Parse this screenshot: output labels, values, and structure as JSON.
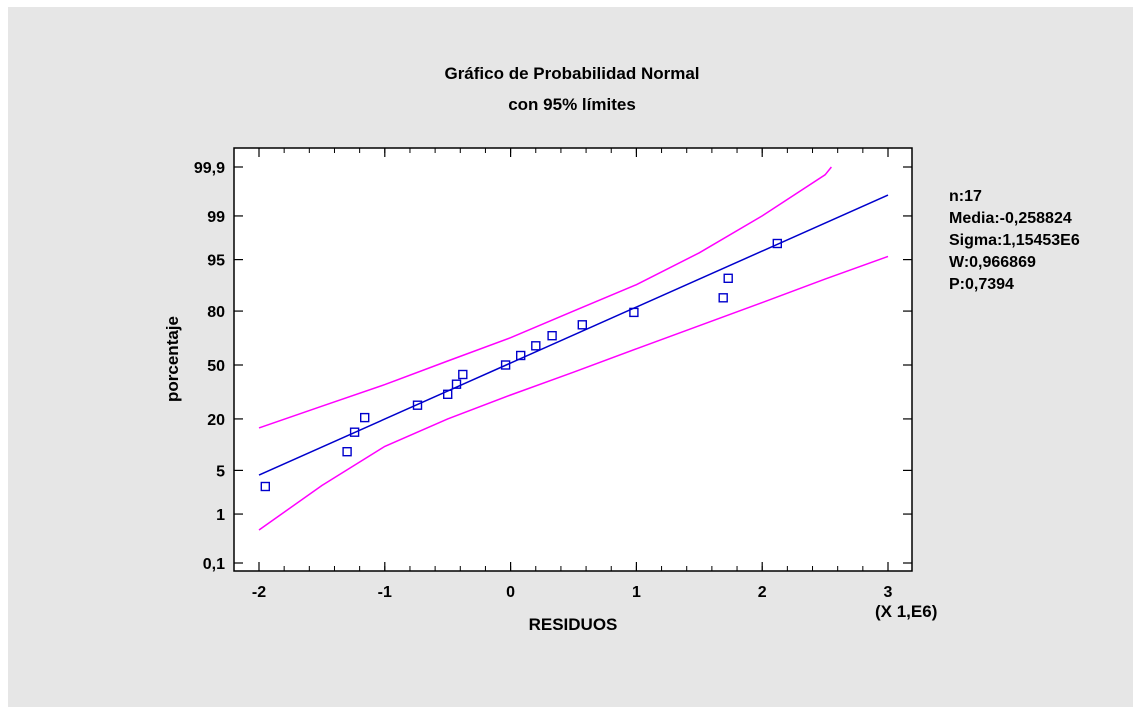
{
  "chart_data": {
    "type": "scatter",
    "title": "Gráfico de Probabilidad Normal",
    "subtitle": "con 95% límites",
    "xlabel": "RESIDUOS",
    "ylabel": "porcentaje",
    "x_multiplier_label": "(X 1,E6)",
    "xlim": [
      -2,
      3
    ],
    "x_ticks": [
      -2,
      -1,
      0,
      1,
      2,
      3
    ],
    "x_tick_labels": [
      "-2",
      "-1",
      "0",
      "1",
      "2",
      "3"
    ],
    "y_scale": "normal-probability",
    "y_ticks": [
      0.1,
      1,
      5,
      20,
      50,
      80,
      95,
      99,
      99.9
    ],
    "y_tick_labels": [
      "0,1",
      "1",
      "5",
      "20",
      "50",
      "80",
      "95",
      "99",
      "99,9"
    ],
    "grid": false,
    "points": {
      "name": "",
      "color": "#0000cc",
      "x": [
        -1.95,
        -1.3,
        -1.24,
        -1.16,
        -0.74,
        -0.5,
        -0.43,
        -0.38,
        -0.04,
        0.08,
        0.2,
        0.33,
        0.57,
        0.98,
        1.69,
        1.73,
        2.12
      ],
      "y": [
        2.9,
        8.8,
        14.7,
        20.6,
        26.5,
        32.4,
        38.2,
        44.1,
        50.0,
        55.9,
        61.8,
        67.6,
        73.5,
        79.4,
        85.3,
        91.2,
        97.1
      ]
    },
    "fit_line": {
      "color": "#0000cc",
      "x": [
        -2.0,
        3.0
      ],
      "y": [
        4.3,
        99.6
      ]
    },
    "limit_lines": {
      "color": "#ff00ff",
      "upper": {
        "x": [
          -2.0,
          -1.5,
          -1.0,
          -0.5,
          0.0,
          0.5,
          1.0,
          1.5,
          2.0,
          2.5,
          2.55
        ],
        "y": [
          16.3,
          26.0,
          38.0,
          52.5,
          66.5,
          80.0,
          89.5,
          96.0,
          99.0,
          99.85,
          99.9
        ]
      },
      "lower": {
        "x": [
          -2.0,
          -1.5,
          -1.0,
          -0.5,
          0.0,
          0.5,
          1.0,
          1.5,
          2.0,
          2.5,
          3.0
        ],
        "y": [
          0.5,
          3.0,
          10.2,
          20.0,
          32.0,
          45.5,
          60.0,
          73.0,
          83.5,
          91.0,
          95.5
        ]
      }
    },
    "stats": [
      "n:17",
      "Media:-0,258824",
      "Sigma:1,15453E6",
      "W:0,966869",
      "P:0,7394"
    ]
  }
}
